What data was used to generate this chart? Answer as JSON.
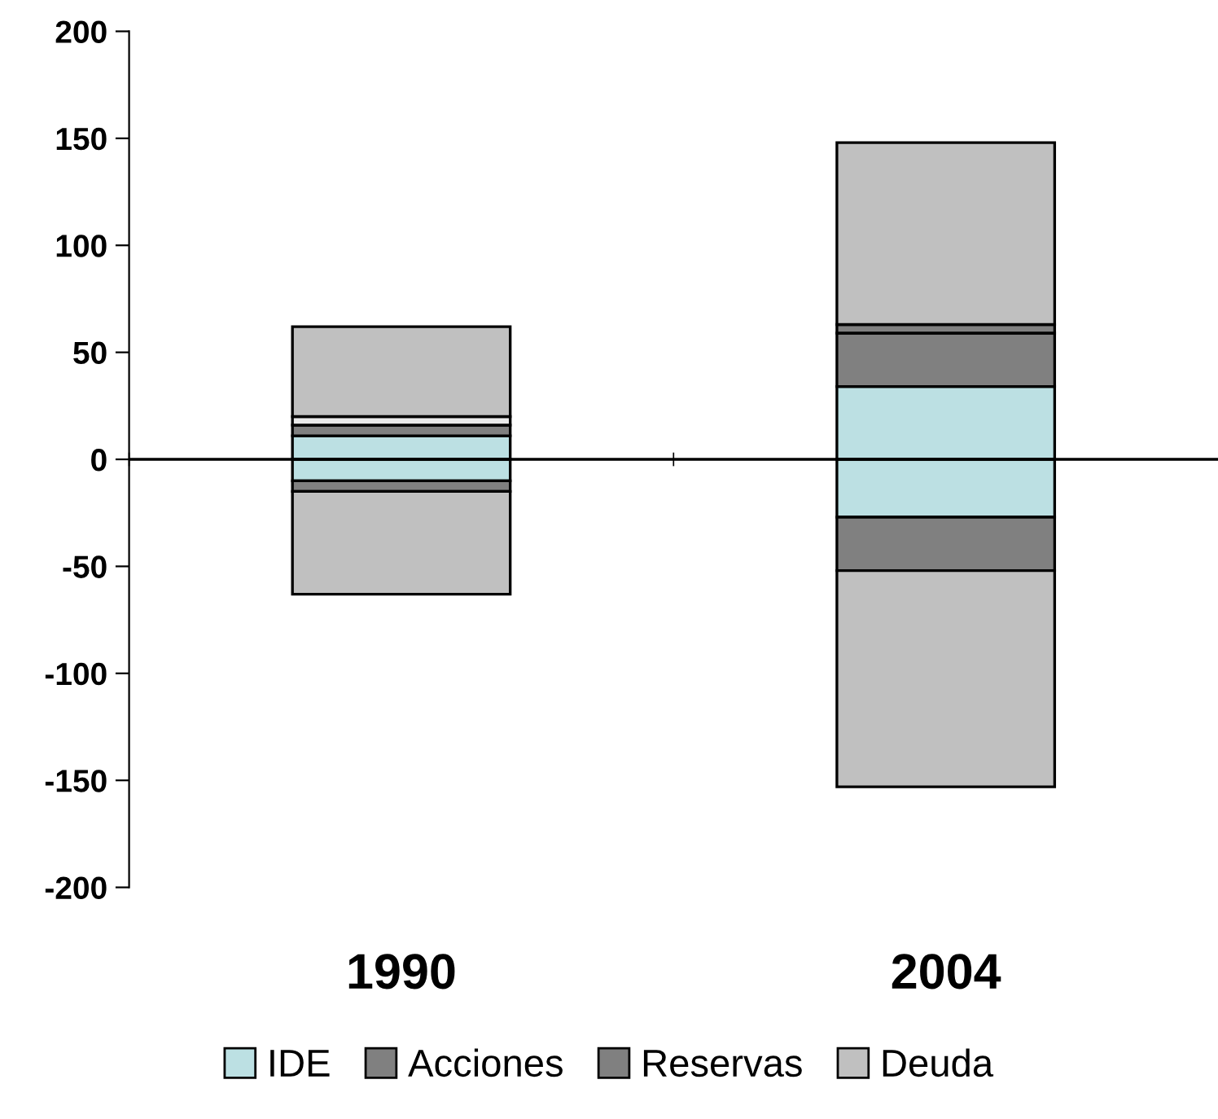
{
  "chart_data": {
    "type": "bar",
    "stacked": true,
    "categories": [
      "1990",
      "2004"
    ],
    "series": [
      {
        "name": "IDE",
        "color": "#bce0e3",
        "values": [
          11,
          34
        ]
      },
      {
        "name": "Acciones",
        "color": "#808080",
        "values": [
          5,
          25
        ]
      },
      {
        "name": "Reservas",
        "color": "#808080",
        "colors": [
          "#eaeaea",
          "#808080"
        ],
        "values": [
          4,
          4
        ]
      },
      {
        "name": "Deuda",
        "color": "#c0c0c0",
        "values": [
          42,
          85
        ]
      },
      {
        "color": "#bce0e3",
        "values": [
          -10,
          -27
        ]
      },
      {
        "color": "#808080",
        "values": [
          -5,
          -25
        ]
      },
      {
        "color": "#c0c0c0",
        "values": [
          -48,
          -101
        ]
      }
    ],
    "ylim": [
      -200,
      200
    ],
    "yticks": [
      -200,
      -150,
      -100,
      -50,
      0,
      50,
      100,
      150,
      200
    ],
    "ref_lines": [
      {
        "axis": "y",
        "value": 0
      }
    ],
    "grid": false,
    "legend": "bottom"
  }
}
